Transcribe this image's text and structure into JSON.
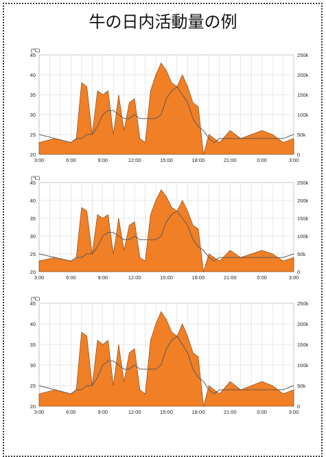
{
  "title": "牛の日内活動量の例",
  "chart_data": [
    {
      "type": "area",
      "x": [
        "3:00",
        "4:30",
        "6:00",
        "6:30",
        "7:00",
        "7:30",
        "8:00",
        "8:30",
        "9:00",
        "9:30",
        "10:00",
        "10:30",
        "11:00",
        "11:30",
        "12:00",
        "12:30",
        "13:00",
        "13:30",
        "14:00",
        "14:30",
        "15:00",
        "15:30",
        "16:00",
        "16:30",
        "17:00",
        "17:30",
        "18:00",
        "18:30",
        "19:00",
        "19:30",
        "20:00",
        "21:00",
        "22:00",
        "23:00",
        "0:00",
        "1:00",
        "2:00",
        "3:00"
      ],
      "left_axis": {
        "unit": "(℃)",
        "ylim": [
          20,
          45
        ],
        "ticks": [
          "20",
          "25",
          "30",
          "35",
          "40",
          "45"
        ]
      },
      "right_axis": {
        "ylim": [
          0,
          250000
        ],
        "ticks": [
          "0",
          "50k",
          "100k",
          "150k",
          "200k",
          "250k"
        ]
      },
      "x_ticks": [
        "3:00",
        "6:00",
        "9:00",
        "12:00",
        "15:00",
        "18:00",
        "21:00",
        "0:00",
        "3:00"
      ],
      "series": [
        {
          "color": "#f07f26",
          "values": [
            23,
            24,
            23,
            24,
            38,
            37,
            25,
            36,
            35,
            36,
            25,
            35,
            26,
            33,
            34,
            24,
            23,
            36,
            40,
            43,
            41,
            38,
            37,
            40,
            37,
            33,
            32,
            20,
            25,
            24,
            23,
            26,
            24,
            25,
            26,
            25,
            23,
            24
          ]
        },
        {
          "color": "#5a5a5a",
          "values": [
            25,
            24,
            23,
            24,
            24,
            25,
            25,
            27,
            30,
            31,
            31,
            30,
            29,
            29,
            30,
            29,
            29,
            29,
            29,
            30,
            34,
            36,
            37,
            35,
            33,
            29,
            27,
            26,
            24,
            23,
            24,
            24,
            24,
            24,
            24,
            24,
            24,
            25
          ]
        }
      ],
      "grid": true
    },
    {
      "type": "area",
      "x": [
        "3:00",
        "4:30",
        "6:00",
        "6:30",
        "7:00",
        "7:30",
        "8:00",
        "8:30",
        "9:00",
        "9:30",
        "10:00",
        "10:30",
        "11:00",
        "11:30",
        "12:00",
        "12:30",
        "13:00",
        "13:30",
        "14:00",
        "14:30",
        "15:00",
        "15:30",
        "16:00",
        "16:30",
        "17:00",
        "17:30",
        "18:00",
        "18:30",
        "19:00",
        "19:30",
        "20:00",
        "21:00",
        "22:00",
        "23:00",
        "0:00",
        "1:00",
        "2:00",
        "3:00"
      ],
      "left_axis": {
        "unit": "(℃)",
        "ylim": [
          20,
          45
        ],
        "ticks": [
          "20",
          "25",
          "30",
          "35",
          "40",
          "45"
        ]
      },
      "right_axis": {
        "ylim": [
          0,
          250000
        ],
        "ticks": [
          "0",
          "50k",
          "100k",
          "150k",
          "200k",
          "250k"
        ]
      },
      "x_ticks": [
        "3:00",
        "6:00",
        "9:00",
        "12:00",
        "15:00",
        "18:00",
        "21:00",
        "0:00",
        "3:00"
      ],
      "series": [
        {
          "color": "#f07f26",
          "values": [
            23,
            24,
            23,
            24,
            38,
            37,
            25,
            36,
            35,
            36,
            25,
            35,
            26,
            33,
            34,
            24,
            23,
            36,
            40,
            43,
            41,
            38,
            37,
            40,
            37,
            33,
            32,
            20,
            25,
            24,
            23,
            26,
            24,
            25,
            26,
            25,
            23,
            24
          ]
        },
        {
          "color": "#5a5a5a",
          "values": [
            25,
            24,
            23,
            24,
            24,
            25,
            25,
            27,
            30,
            31,
            31,
            30,
            29,
            29,
            30,
            29,
            29,
            29,
            29,
            30,
            34,
            36,
            37,
            35,
            33,
            29,
            27,
            26,
            24,
            23,
            24,
            24,
            24,
            24,
            24,
            24,
            24,
            25
          ]
        }
      ],
      "grid": true
    },
    {
      "type": "area",
      "x": [
        "3:00",
        "4:30",
        "6:00",
        "6:30",
        "7:00",
        "7:30",
        "8:00",
        "8:30",
        "9:00",
        "9:30",
        "10:00",
        "10:30",
        "11:00",
        "11:30",
        "12:00",
        "12:30",
        "13:00",
        "13:30",
        "14:00",
        "14:30",
        "15:00",
        "15:30",
        "16:00",
        "16:30",
        "17:00",
        "17:30",
        "18:00",
        "18:30",
        "19:00",
        "19:30",
        "20:00",
        "21:00",
        "22:00",
        "23:00",
        "0:00",
        "1:00",
        "2:00",
        "3:00"
      ],
      "left_axis": {
        "unit": "(℃)",
        "ylim": [
          20,
          45
        ],
        "ticks": [
          "20",
          "25",
          "30",
          "35",
          "40",
          "45"
        ]
      },
      "right_axis": {
        "ylim": [
          0,
          250000
        ],
        "ticks": [
          "0",
          "50k",
          "100k",
          "150k",
          "200k",
          "250k"
        ]
      },
      "x_ticks": [
        "3:00",
        "6:00",
        "9:00",
        "12:00",
        "15:00",
        "18:00",
        "21:00",
        "0:00",
        "3:00"
      ],
      "series": [
        {
          "color": "#f07f26",
          "values": [
            23,
            24,
            23,
            24,
            38,
            37,
            25,
            36,
            35,
            36,
            25,
            35,
            26,
            33,
            34,
            24,
            23,
            36,
            40,
            43,
            41,
            38,
            37,
            40,
            37,
            33,
            32,
            20,
            25,
            24,
            23,
            26,
            24,
            25,
            26,
            25,
            23,
            24
          ]
        },
        {
          "color": "#5a5a5a",
          "values": [
            25,
            24,
            23,
            24,
            24,
            25,
            25,
            27,
            30,
            31,
            31,
            30,
            29,
            29,
            30,
            29,
            29,
            29,
            29,
            30,
            34,
            36,
            37,
            35,
            33,
            29,
            27,
            26,
            24,
            23,
            24,
            24,
            24,
            24,
            24,
            24,
            24,
            25
          ]
        }
      ],
      "grid": true
    }
  ]
}
